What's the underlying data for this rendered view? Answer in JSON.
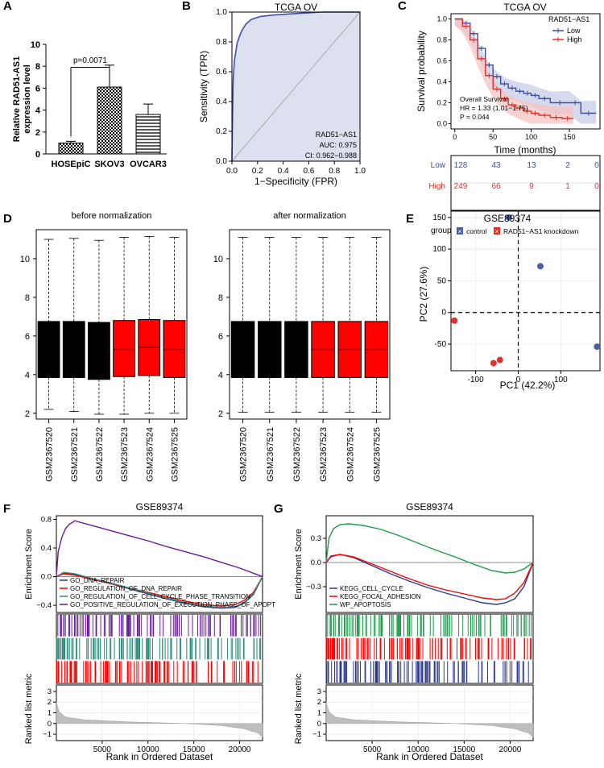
{
  "panel_letters": [
    "A",
    "B",
    "C",
    "D",
    "E",
    "F",
    "G"
  ],
  "colors": {
    "black": "#000000",
    "red": "#ff0000",
    "blue": "#3d4f99",
    "red_km": "#e0302a",
    "purple": "#6a1b9a",
    "teal": "#2a8a7a",
    "green": "#1e9a4a",
    "navy": "#2d3a8c",
    "gray": "#808080"
  },
  "chart_data": [
    {
      "id": "A",
      "type": "bar",
      "ylabel": "Relative RAD51-AS1\nexpression level",
      "ylabel_lines": [
        "Relative RAD51-AS1",
        "expression level"
      ],
      "categories": [
        "HOSEpiC",
        "SKOV3",
        "OVCAR3"
      ],
      "values": [
        1.0,
        6.1,
        3.6
      ],
      "errors": [
        0.15,
        2.0,
        0.95
      ],
      "ylim": [
        0,
        10
      ],
      "yticks": [
        "0",
        "2",
        "4",
        "6",
        "8",
        "10"
      ],
      "annotation": "p=0.0071"
    },
    {
      "id": "B",
      "type": "line",
      "title": "TCGA OV",
      "xlabel": "1−Specificity (FPR)",
      "ylabel": "Sensitivity (TPR)",
      "xticks": [
        "0.0",
        "0.2",
        "0.4",
        "0.6",
        "0.8",
        "1.0"
      ],
      "yticks": [
        "0.0",
        "0.2",
        "0.4",
        "0.6",
        "0.8",
        "1.0"
      ],
      "roc": [
        [
          0,
          0
        ],
        [
          0.005,
          0.3
        ],
        [
          0.01,
          0.55
        ],
        [
          0.02,
          0.68
        ],
        [
          0.03,
          0.73
        ],
        [
          0.04,
          0.79
        ],
        [
          0.06,
          0.84
        ],
        [
          0.08,
          0.88
        ],
        [
          0.11,
          0.92
        ],
        [
          0.15,
          0.95
        ],
        [
          0.22,
          0.97
        ],
        [
          0.32,
          0.98
        ],
        [
          0.5,
          0.99
        ],
        [
          0.7,
          1.0
        ],
        [
          1,
          1
        ]
      ],
      "legend_lines": [
        "RAD51−AS1",
        "AUC: 0.975",
        "CI: 0.962−0.988"
      ]
    },
    {
      "id": "C",
      "type": "line",
      "title": "TCGA OV",
      "xlabel": "Time (months)",
      "ylabel": "Survival probability",
      "xticks": [
        "0",
        "50",
        "100",
        "150"
      ],
      "yticks": [
        "0.0",
        "0.2",
        "0.4",
        "0.6",
        "0.8",
        "1.0"
      ],
      "legend_title": "RAD51−AS1",
      "series": [
        {
          "name": "Low",
          "x": [
            0,
            10,
            20,
            30,
            40,
            50,
            60,
            70,
            80,
            90,
            100,
            110,
            125,
            150,
            165,
            185
          ],
          "y": [
            1.0,
            0.96,
            0.86,
            0.72,
            0.56,
            0.45,
            0.38,
            0.34,
            0.31,
            0.29,
            0.27,
            0.24,
            0.2,
            0.2,
            0.1,
            0.1
          ]
        },
        {
          "name": "High",
          "x": [
            0,
            10,
            20,
            30,
            40,
            50,
            60,
            70,
            80,
            90,
            100,
            110,
            125,
            140,
            155
          ],
          "y": [
            1.0,
            0.93,
            0.8,
            0.62,
            0.46,
            0.33,
            0.24,
            0.18,
            0.15,
            0.12,
            0.1,
            0.08,
            0.06,
            0.05,
            0.05
          ]
        }
      ],
      "annotations": [
        "Overall Survival",
        "HR = 1.33 (1.01−1.75)",
        "P = 0.044"
      ],
      "risk_table": {
        "rows": [
          {
            "name": "Low",
            "counts": [
              "128",
              "43",
              "13",
              "2",
              "0"
            ]
          },
          {
            "name": "High",
            "counts": [
              "249",
              "66",
              "9",
              "1",
              "0"
            ]
          }
        ]
      }
    },
    {
      "id": "D1",
      "type": "bar",
      "subtype": "boxplot",
      "title": "before normalization",
      "categories": [
        "GSM2367520",
        "GSM2367521",
        "GSM2367522",
        "GSM2367523",
        "GSM2367524",
        "GSM2367525"
      ],
      "yticks": [
        "2",
        "4",
        "6",
        "8",
        "10"
      ],
      "ylim": [
        1.7,
        11.5
      ],
      "boxes": [
        {
          "min": 2.2,
          "q1": 3.85,
          "med": 5.3,
          "q3": 6.75,
          "max": 11.0,
          "color": "black"
        },
        {
          "min": 2.1,
          "q1": 3.85,
          "med": 5.3,
          "q3": 6.75,
          "max": 11.05,
          "color": "black"
        },
        {
          "min": 1.95,
          "q1": 3.75,
          "med": 5.3,
          "q3": 6.7,
          "max": 10.95,
          "color": "black"
        },
        {
          "min": 1.95,
          "q1": 3.9,
          "med": 5.3,
          "q3": 6.8,
          "max": 11.1,
          "color": "red"
        },
        {
          "min": 2.0,
          "q1": 3.95,
          "med": 5.4,
          "q3": 6.85,
          "max": 11.15,
          "color": "red"
        },
        {
          "min": 2.0,
          "q1": 3.85,
          "med": 5.3,
          "q3": 6.8,
          "max": 11.1,
          "color": "red"
        }
      ]
    },
    {
      "id": "D2",
      "type": "bar",
      "subtype": "boxplot",
      "title": "after normalization",
      "categories": [
        "GSM2367520",
        "GSM2367521",
        "GSM2367522",
        "GSM2367523",
        "GSM2367524",
        "GSM2367525"
      ],
      "yticks": [
        "2",
        "4",
        "6",
        "8",
        "10"
      ],
      "ylim": [
        1.7,
        11.5
      ],
      "boxes": [
        {
          "min": 2.05,
          "q1": 3.85,
          "med": 5.3,
          "q3": 6.75,
          "max": 11.1,
          "color": "black"
        },
        {
          "min": 2.05,
          "q1": 3.85,
          "med": 5.3,
          "q3": 6.75,
          "max": 11.1,
          "color": "black"
        },
        {
          "min": 2.05,
          "q1": 3.85,
          "med": 5.3,
          "q3": 6.75,
          "max": 11.1,
          "color": "black"
        },
        {
          "min": 2.05,
          "q1": 3.85,
          "med": 5.3,
          "q3": 6.75,
          "max": 11.1,
          "color": "red"
        },
        {
          "min": 2.05,
          "q1": 3.85,
          "med": 5.3,
          "q3": 6.75,
          "max": 11.1,
          "color": "red"
        },
        {
          "min": 2.05,
          "q1": 3.85,
          "med": 5.3,
          "q3": 6.75,
          "max": 11.1,
          "color": "red"
        }
      ]
    },
    {
      "id": "E",
      "type": "scatter",
      "title": "GSE89374",
      "xlabel": "PC1 (42.2%)",
      "ylabel": "PC2 (27.6%)",
      "legend_title": "group",
      "legend_items": [
        "control",
        "RAD51−AS1 knockdown"
      ],
      "xticks": [
        -100,
        0,
        100
      ],
      "yticks": [
        -50,
        0,
        50,
        100,
        150
      ],
      "xlim": [
        -158,
        192
      ],
      "ylim": [
        -92,
        160
      ],
      "points": [
        {
          "x": -22,
          "y": 150,
          "group": "control"
        },
        {
          "x": 52,
          "y": 73,
          "group": "control"
        },
        {
          "x": 185,
          "y": -54,
          "group": "control"
        },
        {
          "x": -150,
          "y": -13,
          "group": "RAD51−AS1 knockdown"
        },
        {
          "x": -58,
          "y": -80,
          "group": "RAD51−AS1 knockdown"
        },
        {
          "x": -43,
          "y": -75,
          "group": "RAD51−AS1 knockdown"
        }
      ]
    },
    {
      "id": "F",
      "type": "line",
      "title": "GSE89374",
      "ylabel": "Enrichment Score",
      "ylabel2": "Ranked list metric",
      "xlabel": "Rank in Ordered Dataset",
      "xticks": [
        "5000",
        "10000",
        "15000",
        "20000"
      ],
      "yticks": [
        "0.8",
        "0.4",
        "0.0",
        "−0.4"
      ],
      "y2ticks": [
        "3",
        "2",
        "1",
        "0",
        "−1"
      ],
      "series": [
        {
          "name": "GO_DNA_REPAIR",
          "color": "navy",
          "x": [
            0,
            800,
            2000,
            4000,
            6000,
            8000,
            10000,
            12000,
            14000,
            16000,
            18000,
            19500,
            20500,
            21500,
            22500
          ],
          "y": [
            0,
            0.05,
            0.03,
            -0.04,
            -0.1,
            -0.17,
            -0.24,
            -0.31,
            -0.37,
            -0.42,
            -0.44,
            -0.43,
            -0.37,
            -0.25,
            0
          ]
        },
        {
          "name": "GO_REGULATION_OF_DNA_REPAIR",
          "color": "red",
          "x": [
            0,
            800,
            2000,
            4000,
            6000,
            8000,
            10000,
            12000,
            14000,
            16000,
            18000,
            19500,
            20500,
            21500,
            22500
          ],
          "y": [
            0,
            0.04,
            0.02,
            -0.04,
            -0.1,
            -0.16,
            -0.22,
            -0.28,
            -0.34,
            -0.39,
            -0.41,
            -0.39,
            -0.33,
            -0.22,
            0
          ]
        },
        {
          "name": "GO_REGULATION_OF_CELL_CYCLE_PHASE_TRANSITION",
          "color": "teal",
          "x": [
            0,
            800,
            2000,
            4000,
            6000,
            8000,
            10000,
            12000,
            14000,
            16000,
            18000,
            19500,
            20500,
            21500,
            22500
          ],
          "y": [
            0,
            0.06,
            0.04,
            -0.03,
            -0.09,
            -0.16,
            -0.23,
            -0.3,
            -0.36,
            -0.41,
            -0.43,
            -0.42,
            -0.36,
            -0.24,
            0
          ]
        },
        {
          "name": "GO_POSITIVE_REGULATION_OF_EXECUTION_PHASE_OF_APOPT",
          "color": "purple",
          "x": [
            0,
            200,
            600,
            1000,
            1400,
            1800,
            2000,
            4000,
            6000,
            8000,
            10000,
            12000,
            14000,
            16000,
            18000,
            20000,
            22500
          ],
          "y": [
            0,
            0.35,
            0.55,
            0.67,
            0.73,
            0.76,
            0.78,
            0.71,
            0.64,
            0.57,
            0.5,
            0.42,
            0.35,
            0.28,
            0.2,
            0.12,
            0
          ]
        }
      ]
    },
    {
      "id": "G",
      "type": "line",
      "title": "GSE89374",
      "ylabel": "Enrichment Score",
      "ylabel2": "Ranked list metric",
      "xlabel": "Rank in Ordered Dataset",
      "xticks": [
        "5000",
        "10000",
        "15000",
        "20000"
      ],
      "yticks": [
        "0.3",
        "0.0",
        "−0.3"
      ],
      "y2ticks": [
        "3",
        "2",
        "1",
        "0",
        "−1"
      ],
      "series": [
        {
          "name": "KEGG_CELL_CYCLE",
          "color": "navy",
          "x": [
            0,
            500,
            1500,
            3000,
            5000,
            7000,
            9000,
            11000,
            13000,
            15000,
            17000,
            18500,
            19500,
            20500,
            21500,
            22500
          ],
          "y": [
            0,
            0.07,
            0.1,
            0.06,
            -0.04,
            -0.14,
            -0.23,
            -0.31,
            -0.38,
            -0.44,
            -0.5,
            -0.52,
            -0.5,
            -0.45,
            -0.3,
            0
          ]
        },
        {
          "name": "KEGG_FOCAL_ADHESION",
          "color": "red",
          "x": [
            0,
            500,
            1500,
            3000,
            5000,
            7000,
            9000,
            11000,
            13000,
            15000,
            17000,
            18500,
            19500,
            20500,
            21500,
            22500
          ],
          "y": [
            0,
            0.08,
            0.1,
            0.07,
            -0.02,
            -0.11,
            -0.2,
            -0.28,
            -0.34,
            -0.39,
            -0.44,
            -0.46,
            -0.45,
            -0.38,
            -0.25,
            0
          ]
        },
        {
          "name": "WP_APOPTOSIS",
          "color": "green",
          "x": [
            0,
            300,
            800,
            1500,
            2500,
            4000,
            6000,
            8000,
            10000,
            12000,
            14000,
            16000,
            18000,
            19500,
            20500,
            21500,
            22500
          ],
          "y": [
            0,
            0.3,
            0.42,
            0.47,
            0.48,
            0.46,
            0.41,
            0.33,
            0.24,
            0.15,
            0.07,
            -0.02,
            -0.1,
            -0.13,
            -0.12,
            -0.08,
            0
          ]
        }
      ]
    }
  ]
}
